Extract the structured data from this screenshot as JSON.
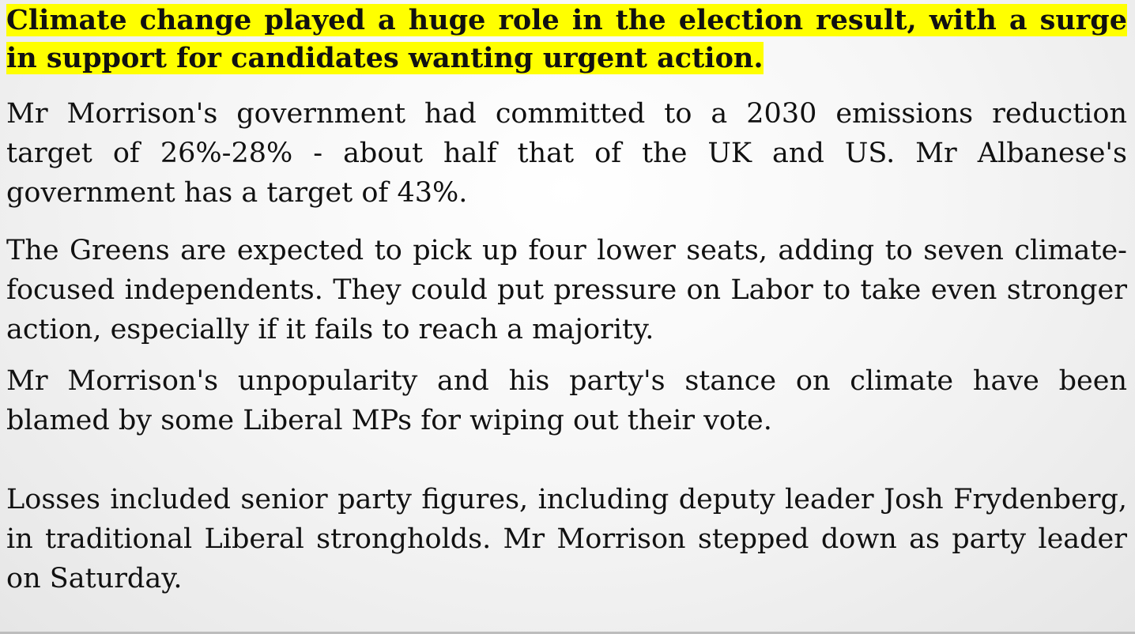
{
  "headline": "Climate change played a huge role in the election result, with a surge in support for candidates wanting urgent action.",
  "paragraphs": [
    "Mr Morrison's government had committed to a 2030 emissions reduction target of 26%-28% - about half that of the UK and US. Mr Albanese's government has a target of 43%.",
    "The Greens are expected to pick up four lower seats, adding to seven climate-focused independents. They could put pressure on Labor to take even stronger action, especially if it fails to reach a majority.",
    "Mr Morrison's unpopularity and his party's stance on climate have been blamed by some Liberal MPs for wiping out their vote.",
    "Losses included senior party figures, including deputy leader Josh Frydenberg, in traditional Liberal strongholds. Mr Morrison stepped down as party leader on Saturday."
  ],
  "colors": {
    "highlight": "#ffff00",
    "text": "#111111"
  }
}
